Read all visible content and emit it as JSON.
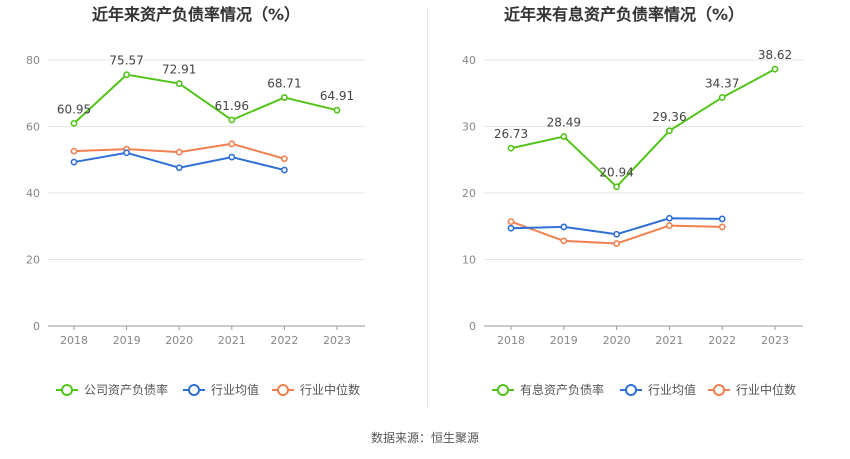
{
  "source_label": "数据来源：恒生聚源",
  "colors": {
    "company": "#52c41a",
    "industry_avg": "#2f6fd6",
    "industry_median": "#f08050",
    "axis_text": "#888888",
    "grid": "#e6e6e6",
    "label_text": "#444444",
    "title_text": "#333333"
  },
  "chart_data": [
    {
      "type": "line",
      "title": "近年来资产负债率情况（%）",
      "categories": [
        "2018",
        "2019",
        "2020",
        "2021",
        "2022",
        "2023"
      ],
      "ylim": [
        0,
        80
      ],
      "yticks": [
        0,
        20,
        40,
        60,
        80
      ],
      "grid": true,
      "legend_position": "bottom",
      "series": [
        {
          "name": "公司资产负债率",
          "color_key": "company",
          "labels": true,
          "values": [
            60.95,
            75.57,
            72.91,
            61.96,
            68.71,
            64.91
          ]
        },
        {
          "name": "行业均值",
          "color_key": "industry_avg",
          "labels": false,
          "values": [
            49.3,
            52.1,
            47.6,
            50.8,
            46.9,
            null
          ]
        },
        {
          "name": "行业中位数",
          "color_key": "industry_median",
          "labels": false,
          "values": [
            52.6,
            53.2,
            52.3,
            54.8,
            50.3,
            null
          ]
        }
      ]
    },
    {
      "type": "line",
      "title": "近年来有息资产负债率情况（%）",
      "categories": [
        "2018",
        "2019",
        "2020",
        "2021",
        "2022",
        "2023"
      ],
      "ylim": [
        0,
        40
      ],
      "yticks": [
        0,
        10,
        20,
        30,
        40
      ],
      "grid": true,
      "legend_position": "bottom",
      "series": [
        {
          "name": "有息资产负债率",
          "color_key": "company",
          "labels": true,
          "values": [
            26.73,
            28.49,
            20.94,
            29.36,
            34.37,
            38.62
          ]
        },
        {
          "name": "行业均值",
          "color_key": "industry_avg",
          "labels": false,
          "values": [
            14.7,
            14.9,
            13.8,
            16.2,
            16.1,
            null
          ]
        },
        {
          "name": "行业中位数",
          "color_key": "industry_median",
          "labels": false,
          "values": [
            15.7,
            12.8,
            12.4,
            15.1,
            14.9,
            null
          ]
        }
      ]
    }
  ]
}
